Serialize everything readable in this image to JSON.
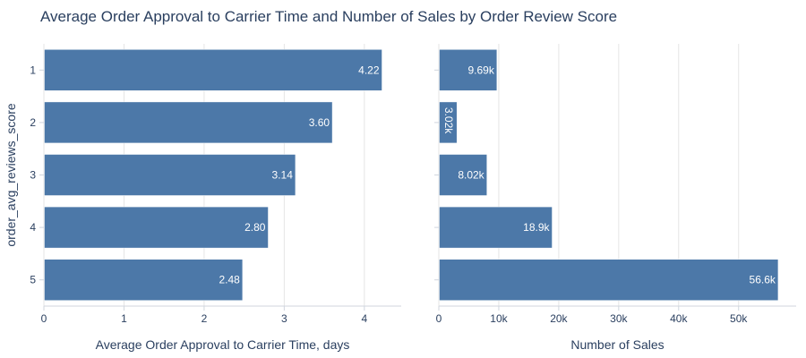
{
  "title": "Average Order Approval to Carrier Time and Number of Sales by Order Review Score",
  "colors": {
    "bar": "#4c78a8",
    "grid": "#e5e5e5",
    "axis": "#d0d6de",
    "text": "#2a3f5f",
    "label": "#ffffff"
  },
  "chart_data": [
    {
      "type": "bar",
      "orientation": "horizontal",
      "categories": [
        "1",
        "2",
        "3",
        "4",
        "5"
      ],
      "values": [
        4.22,
        3.6,
        3.14,
        2.8,
        2.48
      ],
      "data_labels": [
        "4.22",
        "3.60",
        "3.14",
        "2.80",
        "2.48"
      ],
      "xlabel": "Average Order Approval to Carrier Time, days",
      "ylabel": "order_avg_reviews_score",
      "xlim": [
        0,
        4.46
      ],
      "xticks": [
        0,
        1,
        2,
        3,
        4
      ],
      "xtick_labels": [
        "0",
        "1",
        "2",
        "3",
        "4"
      ],
      "grid": true
    },
    {
      "type": "bar",
      "orientation": "horizontal",
      "categories": [
        "1",
        "2",
        "3",
        "4",
        "5"
      ],
      "values": [
        9690,
        3020,
        8020,
        18900,
        56600
      ],
      "data_labels": [
        "9.69k",
        "3.02k",
        "8.02k",
        "18.9k",
        "56.6k"
      ],
      "xlabel": "Number of Sales",
      "xlim": [
        0,
        59600
      ],
      "xticks": [
        0,
        10000,
        20000,
        30000,
        40000,
        50000
      ],
      "xtick_labels": [
        "0",
        "10k",
        "20k",
        "30k",
        "40k",
        "50k"
      ],
      "grid": true
    }
  ]
}
